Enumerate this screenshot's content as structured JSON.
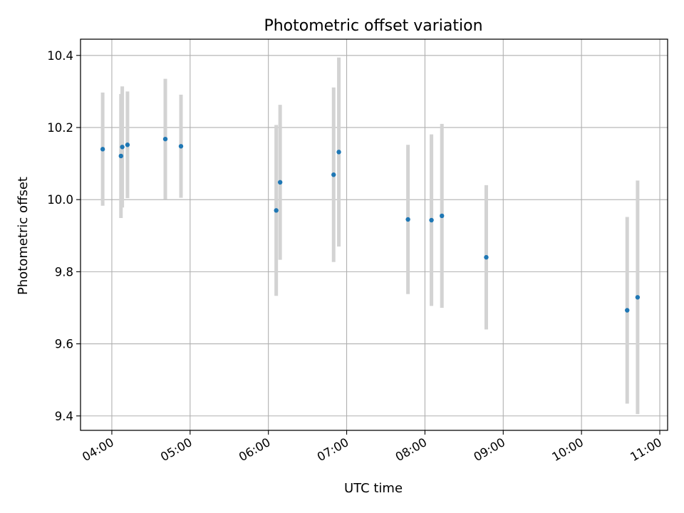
{
  "chart_data": {
    "type": "scatter",
    "title": "Photometric offset variation",
    "xlabel": "UTC time",
    "ylabel": "Photometric offset",
    "xlim": [
      "03:36",
      "11:06"
    ],
    "ylim": [
      9.36,
      10.445
    ],
    "xticks": [
      "04:00",
      "05:00",
      "06:00",
      "07:00",
      "08:00",
      "09:00",
      "10:00",
      "11:00"
    ],
    "yticks": [
      9.4,
      9.6,
      9.8,
      10.0,
      10.2,
      10.4
    ],
    "ytick_labels": [
      "9.4",
      "9.6",
      "9.8",
      "10.0",
      "10.2",
      "10.4"
    ],
    "grid": true,
    "colors": {
      "point": "#1f77b4",
      "errorbar": "#d3d3d3",
      "grid": "#b0b0b0"
    },
    "points": [
      {
        "x": "03:53",
        "y": 10.14,
        "err": 0.157
      },
      {
        "x": "04:07",
        "y": 10.121,
        "err": 0.172
      },
      {
        "x": "04:08",
        "y": 10.146,
        "err": 0.168
      },
      {
        "x": "04:12",
        "y": 10.152,
        "err": 0.148
      },
      {
        "x": "04:41",
        "y": 10.168,
        "err": 0.167
      },
      {
        "x": "04:53",
        "y": 10.148,
        "err": 0.143
      },
      {
        "x": "06:06",
        "y": 9.97,
        "err": 0.237
      },
      {
        "x": "06:09",
        "y": 10.048,
        "err": 0.215
      },
      {
        "x": "06:50",
        "y": 10.069,
        "err": 0.242
      },
      {
        "x": "06:54",
        "y": 10.132,
        "err": 0.262
      },
      {
        "x": "07:47",
        "y": 9.945,
        "err": 0.207
      },
      {
        "x": "08:05",
        "y": 9.943,
        "err": 0.238
      },
      {
        "x": "08:13",
        "y": 9.955,
        "err": 0.255
      },
      {
        "x": "08:47",
        "y": 9.84,
        "err": 0.2
      },
      {
        "x": "10:35",
        "y": 9.693,
        "err": 0.259
      },
      {
        "x": "10:43",
        "y": 9.729,
        "err": 0.324
      }
    ]
  }
}
